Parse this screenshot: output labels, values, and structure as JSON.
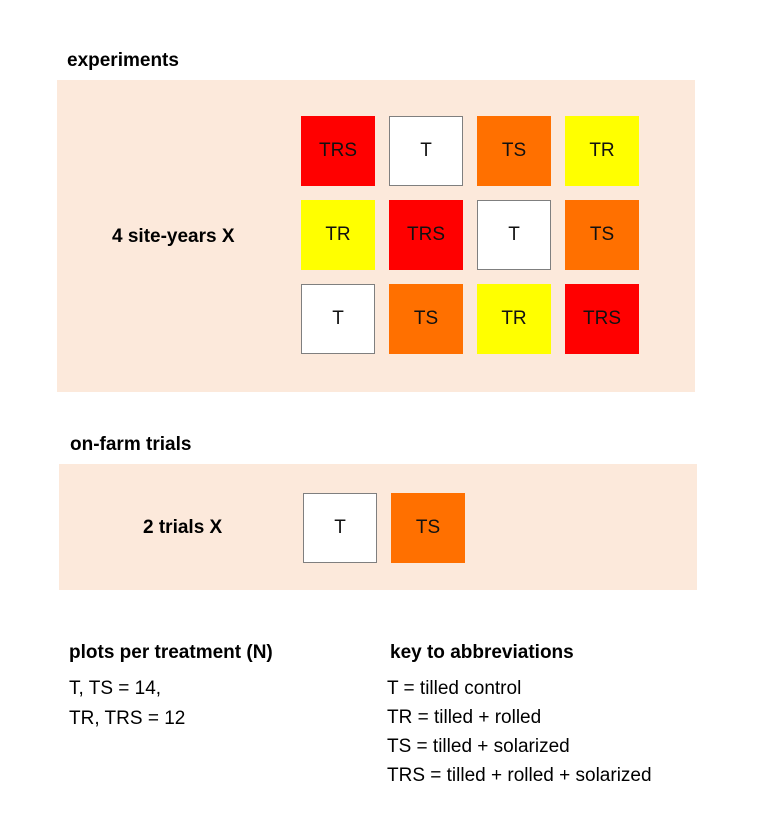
{
  "colors": {
    "panel_bg": "#fce9db",
    "T": "#ffffff",
    "TR": "#ffff00",
    "TS": "#ff7000",
    "TRS": "#ff0000"
  },
  "experiments": {
    "heading": "experiments",
    "row_label": "4 site-years  X",
    "grid": [
      [
        "TRS",
        "T",
        "TS",
        "TR"
      ],
      [
        "TR",
        "TRS",
        "T",
        "TS"
      ],
      [
        "T",
        "TS",
        "TR",
        "TRS"
      ]
    ]
  },
  "on_farm": {
    "heading": "on-farm trials",
    "row_label": "2 trials  X",
    "cells": [
      "T",
      "TS"
    ]
  },
  "plots": {
    "heading": "plots per treatment (N)",
    "lines": [
      "T, TS = 14,",
      "TR, TRS = 12"
    ]
  },
  "key": {
    "heading": "key to abbreviations",
    "lines": [
      "T = tilled control",
      "TR = tilled + rolled",
      "TS = tilled + solarized",
      "TRS = tilled + rolled + solarized"
    ]
  }
}
